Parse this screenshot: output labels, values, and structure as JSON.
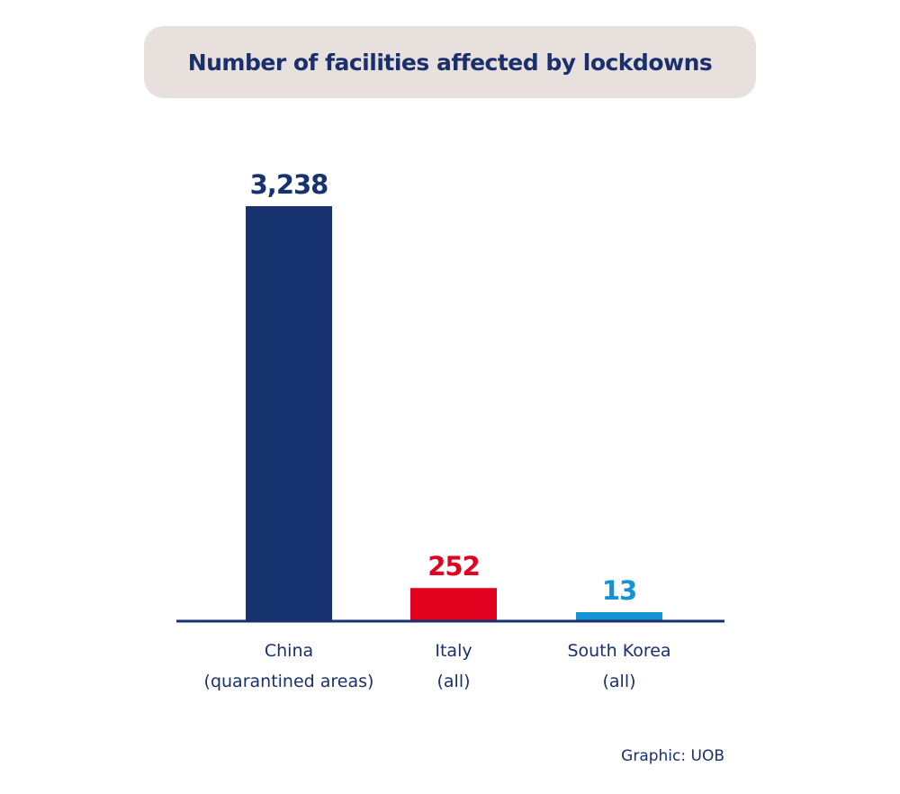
{
  "chart_data": {
    "type": "bar",
    "title": "Number of facilities affected by lockdowns",
    "categories": [
      [
        "China",
        "(quarantined areas)"
      ],
      [
        "Italy",
        "(all)"
      ],
      [
        "South Korea",
        "(all)"
      ]
    ],
    "values": [
      3238,
      252,
      13
    ],
    "value_labels": [
      "3,238",
      "252",
      "13"
    ],
    "bar_colors": [
      "#16336f",
      "#e2011f",
      "#1592d2"
    ],
    "xlabel": "",
    "ylabel": "",
    "ylim": [
      0,
      3238
    ],
    "grid": false,
    "legend": "none"
  },
  "source": "Graphic: UOB",
  "colors": {
    "title_background": "#e7e0dc",
    "text": "#1a2f6c",
    "axis": "#1a2f6c"
  }
}
